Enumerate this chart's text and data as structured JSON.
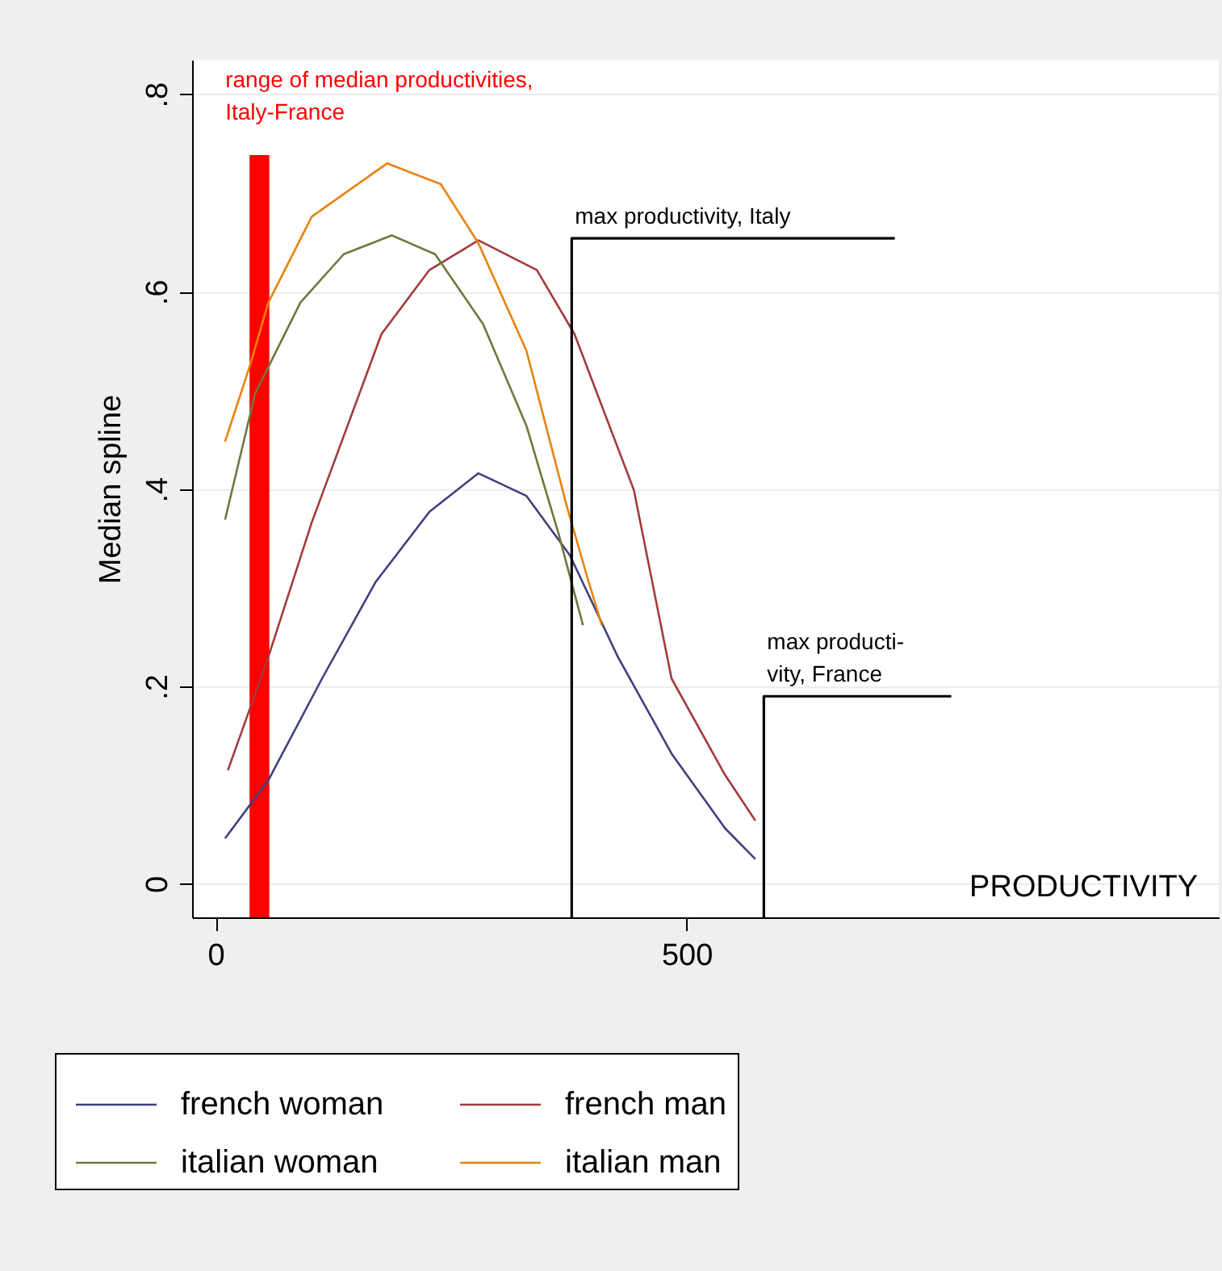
{
  "chart_data": {
    "type": "line",
    "xlabel": "PRODUCTIVITY",
    "ylabel": "Median spline",
    "xlim": [
      -25,
      1065
    ],
    "ylim": [
      -0.034,
      0.835
    ],
    "xticks": [
      0,
      500
    ],
    "yticks": [
      0,
      {
        "value": 0.2,
        "label": ".2"
      },
      {
        "value": 0.4,
        "label": ".4"
      },
      {
        "value": 0.6,
        "label": ".6"
      },
      {
        "value": 0.8,
        "label": ".8"
      }
    ],
    "grid": "y",
    "legend": "bottom",
    "series": [
      {
        "name": "french woman",
        "color": "#404080",
        "x": [
          10,
          56,
          113,
          170,
          227,
          279,
          330,
          376,
          427,
          484,
          541,
          573
        ],
        "values": [
          0.046,
          0.105,
          0.208,
          0.306,
          0.377,
          0.416,
          0.393,
          0.333,
          0.23,
          0.132,
          0.056,
          0.025
        ]
      },
      {
        "name": "french man",
        "color": "#a33b3b",
        "x": [
          13,
          56,
          102,
          176,
          227,
          279,
          341,
          381,
          444,
          484,
          541,
          573
        ],
        "values": [
          0.115,
          0.23,
          0.366,
          0.557,
          0.622,
          0.652,
          0.622,
          0.557,
          0.399,
          0.208,
          0.11,
          0.064
        ]
      },
      {
        "name": "italian woman",
        "color": "#6b7a3c",
        "x": [
          10,
          42,
          90,
          136,
          187,
          233,
          284,
          330,
          364,
          390
        ],
        "values": [
          0.369,
          0.497,
          0.589,
          0.638,
          0.657,
          0.638,
          0.567,
          0.464,
          0.355,
          0.262
        ]
      },
      {
        "name": "italian man",
        "color": "#e8820c",
        "x": [
          10,
          36,
          56,
          102,
          182,
          239,
          279,
          330,
          373,
          396,
          410
        ],
        "values": [
          0.448,
          0.524,
          0.589,
          0.676,
          0.73,
          0.709,
          0.649,
          0.54,
          0.382,
          0.306,
          0.262
        ]
      },
      {
        "type": "line",
        "color": "#000000",
        "x": [
          378,
          378,
          721
        ],
        "values": [
          -0.034,
          0.654,
          0.654
        ]
      },
      {
        "type": "line",
        "color": "#000000",
        "x": [
          582,
          582,
          781
        ],
        "values": [
          -0.034,
          0.19,
          0.19
        ]
      }
    ],
    "bands": [
      {
        "axis": "x",
        "from": 36,
        "to": 57,
        "label": "range of median productivities,\nItaly-France",
        "color": "#ff0000"
      }
    ],
    "annotations": [
      "max productivity, Italy",
      "max producti-\nvity, France"
    ]
  }
}
